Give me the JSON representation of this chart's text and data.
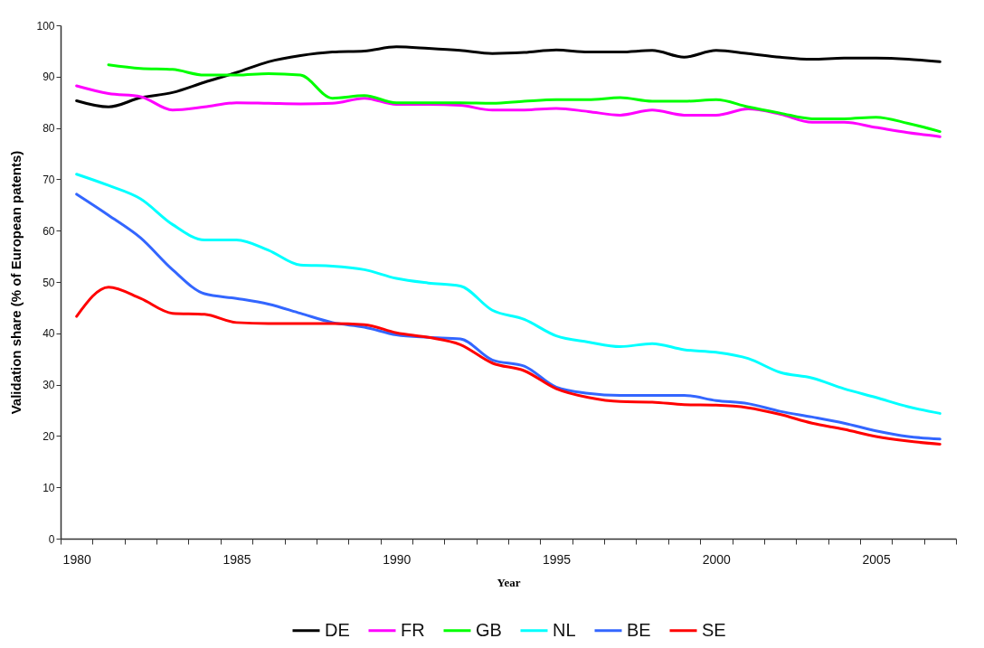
{
  "chart_data": {
    "type": "line",
    "xlabel": "Year",
    "ylabel": "Validation share (% of European patents)",
    "categories": [
      "1980",
      null,
      null,
      null,
      null,
      "1985",
      null,
      null,
      null,
      null,
      "1990",
      null,
      null,
      null,
      null,
      "1995",
      null,
      null,
      null,
      null,
      "2000",
      null,
      null,
      null,
      null,
      "2005",
      null,
      null
    ],
    "ylim": [
      0,
      100
    ],
    "yticks": [
      0,
      10,
      20,
      30,
      40,
      50,
      60,
      70,
      80,
      90,
      100
    ],
    "legend": "bottom",
    "grid": false,
    "marker": "none",
    "line_style": "solid",
    "series": [
      {
        "name": "DE",
        "color": "#000000",
        "values": [
          85.3,
          84.1,
          85.9,
          86.9,
          88.9,
          90.8,
          92.9,
          94.1,
          94.8,
          95.0,
          95.8,
          95.5,
          95.1,
          94.5,
          94.7,
          95.2,
          94.8,
          94.8,
          95.1,
          93.8,
          95.1,
          94.5,
          93.8,
          93.4,
          93.6,
          93.6,
          93.4,
          92.9
        ]
      },
      {
        "name": "FR",
        "color": "#ff00ff",
        "values": [
          88.2,
          86.7,
          86.1,
          83.5,
          84.1,
          84.9,
          84.8,
          84.7,
          84.8,
          85.8,
          84.6,
          84.6,
          84.4,
          83.5,
          83.5,
          83.8,
          83.2,
          82.5,
          83.5,
          82.5,
          82.5,
          83.7,
          82.7,
          81.1,
          81.1,
          80.1,
          79.1,
          78.3
        ]
      },
      {
        "name": "GB",
        "color": "#00ff00",
        "values": [
          null,
          92.3,
          91.6,
          91.4,
          90.3,
          90.3,
          90.6,
          90.3,
          85.8,
          86.3,
          84.9,
          84.9,
          84.9,
          84.8,
          85.2,
          85.5,
          85.5,
          85.9,
          85.2,
          85.2,
          85.5,
          84.1,
          82.9,
          81.8,
          81.8,
          82.1,
          80.9,
          79.3
        ]
      },
      {
        "name": "NL",
        "color": "#00ffff",
        "values": [
          71.0,
          68.8,
          66.2,
          61.2,
          58.2,
          58.2,
          56.2,
          53.3,
          53.1,
          52.4,
          50.7,
          49.8,
          49.2,
          44.5,
          42.7,
          39.5,
          38.3,
          37.4,
          38.0,
          36.8,
          36.3,
          35.1,
          32.4,
          31.3,
          29.2,
          27.5,
          25.7,
          24.4
        ]
      },
      {
        "name": "BE",
        "color": "#3366ff",
        "values": [
          67.1,
          63.0,
          58.6,
          52.4,
          47.7,
          46.8,
          45.7,
          43.9,
          42.1,
          41.2,
          39.7,
          39.2,
          38.9,
          34.8,
          33.6,
          29.5,
          28.3,
          27.9,
          27.9,
          27.9,
          26.9,
          26.3,
          24.8,
          23.7,
          22.5,
          21.0,
          19.9,
          19.4
        ]
      },
      {
        "name": "SE",
        "color": "#ff0000",
        "values": [
          43.3,
          49.0,
          46.8,
          43.9,
          43.7,
          42.1,
          41.9,
          41.9,
          41.9,
          41.7,
          40.1,
          39.2,
          37.8,
          34.2,
          32.7,
          29.2,
          27.5,
          26.7,
          26.6,
          26.1,
          26.0,
          25.5,
          24.2,
          22.5,
          21.3,
          19.9,
          19.0,
          18.4
        ]
      }
    ]
  }
}
